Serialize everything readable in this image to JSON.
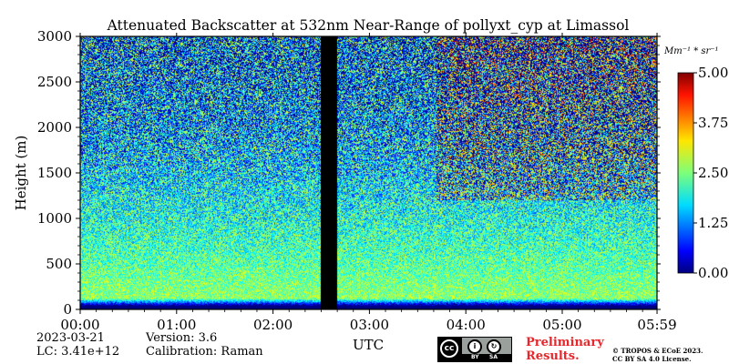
{
  "chart_data": {
    "type": "heatmap",
    "title": "Attenuated Backscatter at 532nm Near-Range of pollyxt_cyp at Limassol",
    "xlabel": "UTC",
    "ylabel": "Height (m)",
    "x_ticks": [
      "00:00",
      "01:00",
      "02:00",
      "03:00",
      "04:00",
      "05:00",
      "05:59"
    ],
    "x_range_hours": [
      0,
      5.983
    ],
    "y_ticks": [
      0,
      500,
      1000,
      1500,
      2000,
      2500,
      3000
    ],
    "ylim": [
      0,
      3000
    ],
    "colorbar": {
      "unit": "Mm⁻¹ * sr⁻¹",
      "ticks": [
        "0.00",
        "1.25",
        "2.50",
        "3.75",
        "5.00"
      ],
      "range": [
        0,
        5
      ],
      "colormap": "jet"
    },
    "no_data_interval_utc": [
      "02:30",
      "02:40"
    ],
    "profile_description": [
      {
        "height": 50,
        "value": 0.3
      },
      {
        "height": 120,
        "value": 2.6
      },
      {
        "height": 500,
        "value": 2.3
      },
      {
        "height": 1000,
        "value": 2.0
      },
      {
        "height": 1500,
        "value": 1.7
      },
      {
        "height": 2000,
        "value": 1.4
      },
      {
        "height": 2500,
        "value": 1.2
      },
      {
        "height": 3000,
        "value": 1.0
      }
    ],
    "grid": false
  },
  "meta": {
    "date": "2023-03-21",
    "lc": "LC: 3.41e+12",
    "version": "Version: 3.6",
    "calibration": "Calibration: Raman"
  },
  "footer": {
    "preliminary_line1": "Preliminary",
    "preliminary_line2": "Results.",
    "copyright_line1": "© TROPOS & ECoE 2023.",
    "copyright_line2": "CC BY SA 4.0 License.",
    "cc_by": "BY",
    "cc_sa": "SA"
  }
}
